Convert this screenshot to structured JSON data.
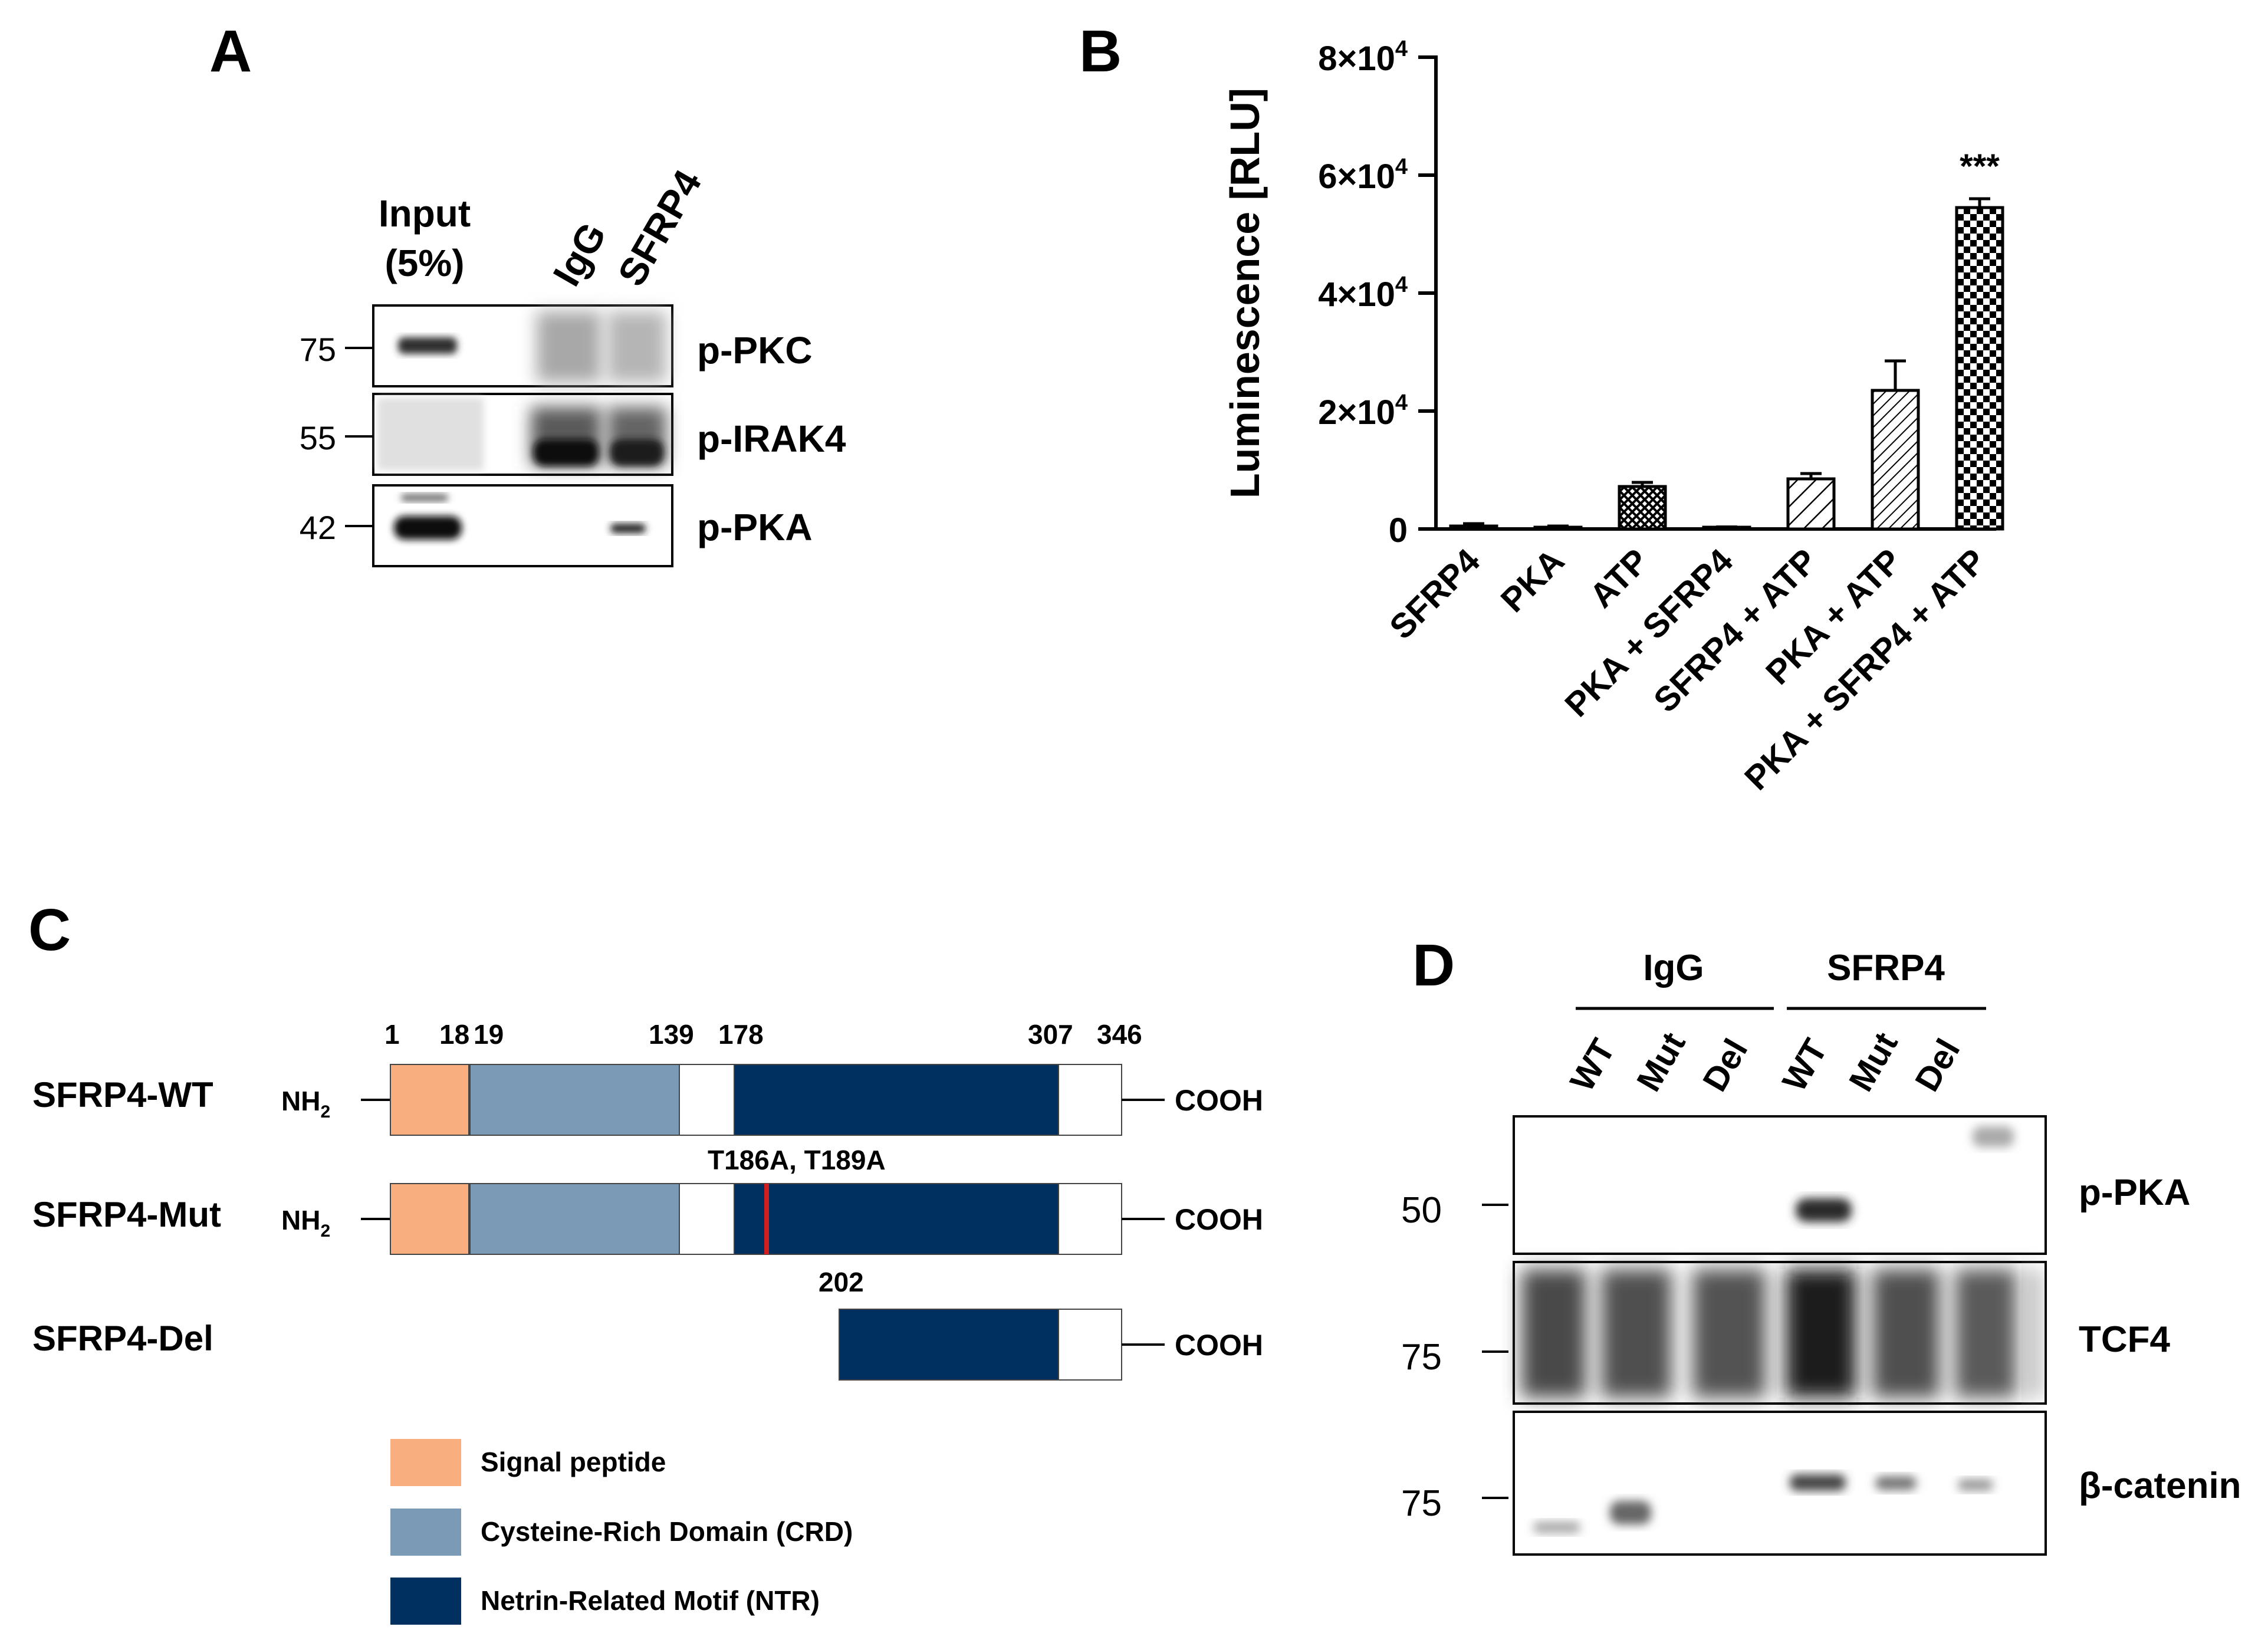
{
  "panels": {
    "a": {
      "letter": "A",
      "input_line1": "Input",
      "input_line2": "(5%)",
      "lanes": [
        "IgG",
        "SFRP4"
      ],
      "markers": [
        "75",
        "55",
        "42"
      ],
      "blot_labels": [
        "p-PKC",
        "p-IRAK4",
        "p-PKA"
      ]
    },
    "b": {
      "letter": "B"
    },
    "c": {
      "letter": "C",
      "rows": [
        "SFRP4-WT",
        "SFRP4-Mut",
        "SFRP4-Del"
      ],
      "nh2": "NH",
      "nh2_sub": "2",
      "cooh": "COOH",
      "positions": [
        "1",
        "18",
        "19",
        "139",
        "178",
        "307",
        "346"
      ],
      "mutation_label": "T186A, T189A",
      "del_start": "202",
      "legend": [
        "Signal peptide",
        "Cysteine-Rich Domain (CRD)",
        "Netrin-Related Motif (NTR)"
      ],
      "colors": {
        "signal": "#f9ae7f",
        "crd": "#7b9ab5",
        "ntr": "#00305f",
        "mutation": "#d11f1f"
      }
    },
    "d": {
      "letter": "D",
      "groups": [
        "IgG",
        "SFRP4"
      ],
      "lanes": [
        "WT",
        "Mut",
        "Del",
        "WT",
        "Mut",
        "Del"
      ],
      "markers": [
        "50",
        "75",
        "75"
      ],
      "blot_labels": [
        "p-PKA",
        "TCF4",
        "β-catenin"
      ]
    }
  },
  "chart_data": {
    "type": "bar",
    "title": "",
    "xlabel": "",
    "ylabel": "Luminescence [RLU]",
    "ylim": [
      0,
      80000
    ],
    "yticks": [
      0,
      20000,
      40000,
      60000,
      80000
    ],
    "ytick_labels": [
      {
        "base": "0",
        "exp": ""
      },
      {
        "base": "2×10",
        "exp": "4"
      },
      {
        "base": "4×10",
        "exp": "4"
      },
      {
        "base": "6×10",
        "exp": "4"
      },
      {
        "base": "8×10",
        "exp": "4"
      }
    ],
    "categories": [
      "SFRP4",
      "PKA",
      "ATP",
      "PKA + SFRP4",
      "SFRP4 + ATP",
      "PKA + ATP",
      "PKA + SFRP4 + ATP"
    ],
    "values": [
      500,
      300,
      7200,
      200,
      8500,
      23500,
      54500
    ],
    "errors": [
      400,
      200,
      700,
      150,
      900,
      5000,
      1500
    ],
    "patterns": [
      "solid",
      "solid",
      "crosshatch",
      "solid",
      "hatch-sparse",
      "hatch-dense",
      "checker"
    ],
    "annotations": [
      {
        "category": "PKA + SFRP4 + ATP",
        "text": "***"
      }
    ]
  }
}
